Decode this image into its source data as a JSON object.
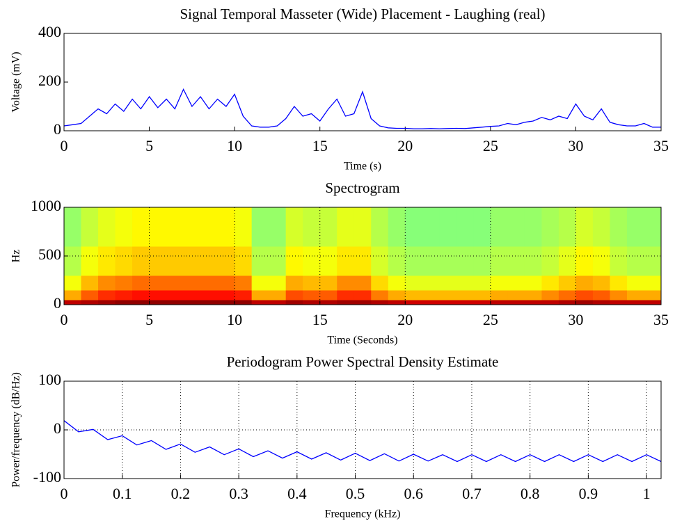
{
  "chart_data": [
    {
      "type": "line",
      "title": "Signal Temporal Masseter (Wide) Placement - Laughing (real)",
      "xlabel": "Time (s)",
      "ylabel": "Voltage (mV)",
      "x": [
        0,
        0.5,
        1,
        1.5,
        2,
        2.5,
        3,
        3.5,
        4,
        4.5,
        5,
        5.5,
        6,
        6.5,
        7,
        7.5,
        8,
        8.5,
        9,
        9.5,
        10,
        10.5,
        11,
        11.5,
        12,
        12.5,
        13,
        13.5,
        14,
        14.5,
        15,
        15.5,
        16,
        16.5,
        17,
        17.5,
        18,
        18.5,
        19,
        19.5,
        20,
        20.5,
        21,
        21.5,
        22,
        22.5,
        23,
        23.5,
        24,
        24.5,
        25,
        25.5,
        26,
        26.5,
        27,
        27.5,
        28,
        28.5,
        29,
        29.5,
        30,
        30.5,
        31,
        31.5,
        32,
        32.5,
        33,
        33.5,
        34,
        34.5,
        35
      ],
      "values": [
        20,
        25,
        30,
        60,
        90,
        70,
        110,
        80,
        130,
        90,
        140,
        95,
        130,
        90,
        170,
        100,
        140,
        90,
        130,
        100,
        150,
        60,
        20,
        15,
        15,
        20,
        50,
        100,
        60,
        70,
        40,
        90,
        130,
        60,
        70,
        160,
        50,
        20,
        12,
        10,
        10,
        8,
        8,
        9,
        8,
        9,
        10,
        9,
        12,
        15,
        18,
        20,
        30,
        25,
        35,
        40,
        55,
        45,
        60,
        50,
        110,
        60,
        45,
        90,
        35,
        25,
        20,
        20,
        30,
        15,
        15
      ],
      "color": "#0000ff",
      "xlim": [
        0,
        35
      ],
      "ylim": [
        0,
        400
      ],
      "xticks": [
        0,
        5,
        10,
        15,
        20,
        25,
        30,
        35
      ],
      "yticks": [
        0,
        200,
        400
      ],
      "grid": false
    },
    {
      "type": "heatmap",
      "title": "Spectrogram",
      "xlabel": "Time (Seconds)",
      "ylabel": "Hz",
      "xbins": [
        0,
        1,
        2,
        3,
        4,
        5,
        6,
        7,
        8,
        9,
        10,
        11,
        12,
        13,
        14,
        15,
        16,
        17,
        18,
        19,
        20,
        21,
        22,
        23,
        24,
        25,
        26,
        27,
        28,
        29,
        30,
        31,
        32,
        33,
        34,
        35
      ],
      "ybins": [
        0,
        50,
        150,
        300,
        600,
        1000
      ],
      "values": [
        [
          41,
          42,
          43,
          44,
          44,
          44,
          44,
          44,
          44,
          44,
          44,
          41,
          41,
          43,
          42,
          42,
          43,
          43,
          42,
          41,
          40,
          40,
          40,
          40,
          40,
          41,
          41,
          41,
          41,
          42,
          43,
          42,
          41,
          41,
          41
        ],
        [
          26,
          31,
          34,
          35,
          36,
          36,
          36,
          36,
          36,
          36,
          35,
          26,
          26,
          32,
          31,
          31,
          34,
          34,
          29,
          26,
          25,
          25,
          25,
          25,
          25,
          26,
          26,
          26,
          28,
          30,
          32,
          31,
          28,
          26,
          26
        ],
        [
          20,
          25,
          28,
          29,
          30,
          30,
          30,
          30,
          30,
          30,
          29,
          20,
          20,
          26,
          25,
          25,
          28,
          28,
          23,
          20,
          19,
          19,
          19,
          19,
          19,
          20,
          20,
          20,
          22,
          24,
          26,
          25,
          22,
          20,
          20
        ],
        [
          16,
          20,
          22,
          23,
          24,
          24,
          24,
          24,
          24,
          24,
          23,
          16,
          16,
          21,
          20,
          20,
          22,
          22,
          18,
          16,
          15,
          15,
          15,
          15,
          15,
          16,
          16,
          16,
          17,
          19,
          21,
          20,
          17,
          16,
          16
        ],
        [
          14,
          17,
          19,
          20,
          21,
          21,
          21,
          21,
          21,
          21,
          20,
          14,
          14,
          18,
          17,
          17,
          19,
          19,
          16,
          14,
          13,
          13,
          13,
          13,
          13,
          14,
          14,
          14,
          15,
          16,
          18,
          17,
          15,
          14,
          14
        ]
      ],
      "colormap": "jet",
      "clim": [
        -20,
        45
      ],
      "xlim": [
        0,
        35
      ],
      "ylim": [
        0,
        1000
      ],
      "xticks": [
        0,
        5,
        10,
        15,
        20,
        25,
        30,
        35
      ],
      "yticks": [
        0,
        500,
        1000
      ],
      "grid": true
    },
    {
      "type": "line",
      "title": "Periodogram Power Spectral Density Estimate",
      "xlabel": "Frequency (kHz)",
      "ylabel": "Power/frequency (dB/Hz)",
      "x": [
        0,
        0.025,
        0.05,
        0.075,
        0.1,
        0.125,
        0.15,
        0.175,
        0.2,
        0.225,
        0.25,
        0.275,
        0.3,
        0.325,
        0.35,
        0.375,
        0.4,
        0.425,
        0.45,
        0.475,
        0.5,
        0.525,
        0.55,
        0.575,
        0.6,
        0.625,
        0.65,
        0.675,
        0.7,
        0.725,
        0.75,
        0.775,
        0.8,
        0.825,
        0.85,
        0.875,
        0.9,
        0.925,
        0.95,
        0.975,
        1,
        1.025
      ],
      "values": [
        19,
        -4,
        1,
        -20,
        -12,
        -31,
        -22,
        -40,
        -29,
        -46,
        -35,
        -51,
        -39,
        -55,
        -43,
        -58,
        -45,
        -60,
        -47,
        -62,
        -48,
        -63,
        -49,
        -64,
        -50,
        -64,
        -51,
        -65,
        -51,
        -65,
        -51,
        -65,
        -51,
        -65,
        -51,
        -65,
        -51,
        -65,
        -51,
        -65,
        -51,
        -65
      ],
      "color": "#0000ff",
      "xlim": [
        0,
        1.025
      ],
      "ylim": [
        -100,
        100
      ],
      "xticks": [
        0,
        0.1,
        0.2,
        0.3,
        0.4,
        0.5,
        0.6,
        0.7,
        0.8,
        0.9,
        1
      ],
      "yticks": [
        -100,
        0,
        100
      ],
      "grid": true
    }
  ]
}
